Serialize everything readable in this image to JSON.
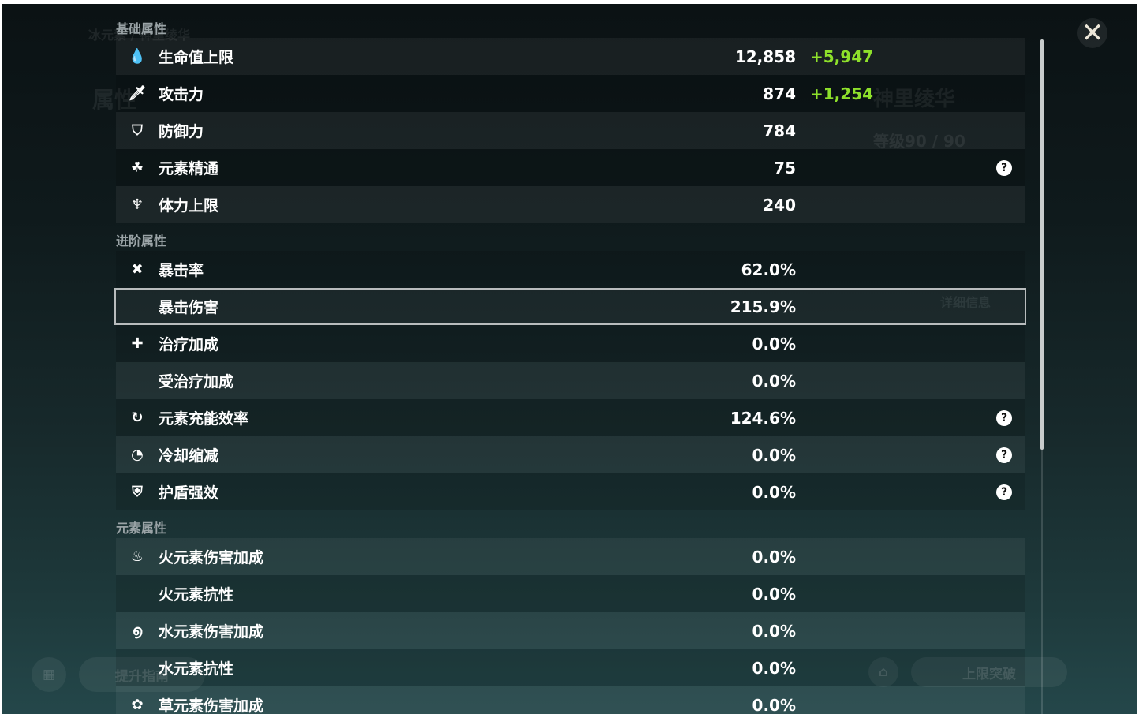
{
  "background": {
    "character_name": "神里绫华",
    "element_line": "冰元素 / 神里绫华",
    "level": "等级90 / 90",
    "tab_attributes": "属性",
    "detail_button": "详细信息",
    "upgrade_button": "提升指南",
    "ascend_button": "上限突破"
  },
  "sections": [
    {
      "title": "基础属性",
      "rows": [
        {
          "icon": "hp-drop-icon",
          "glyph": "💧",
          "label": "生命值上限",
          "value": "12,858",
          "bonus": "+5,947"
        },
        {
          "icon": "sword-icon",
          "glyph": "🗡",
          "label": "攻击力",
          "value": "874",
          "bonus": "+1,254"
        },
        {
          "icon": "shield-icon",
          "glyph": "⛉",
          "label": "防御力",
          "value": "784"
        },
        {
          "icon": "elemental-mastery-icon",
          "glyph": "☘",
          "label": "元素精通",
          "value": "75",
          "help": true
        },
        {
          "icon": "stamina-icon",
          "glyph": "♆",
          "label": "体力上限",
          "value": "240"
        }
      ]
    },
    {
      "title": "进阶属性",
      "rows": [
        {
          "icon": "crit-rate-icon",
          "glyph": "✖",
          "label": "暴击率",
          "value": "62.0%"
        },
        {
          "icon": "crit-dmg-icon",
          "glyph": "",
          "label": "暴击伤害",
          "value": "215.9%",
          "selected": true
        },
        {
          "icon": "healing-icon",
          "glyph": "✚",
          "label": "治疗加成",
          "value": "0.0%"
        },
        {
          "icon": "",
          "glyph": "",
          "label": "受治疗加成",
          "value": "0.0%"
        },
        {
          "icon": "energy-recharge-icon",
          "glyph": "↻",
          "label": "元素充能效率",
          "value": "124.6%",
          "help": true
        },
        {
          "icon": "cooldown-icon",
          "glyph": "◔",
          "label": "冷却缩减",
          "value": "0.0%",
          "help": true
        },
        {
          "icon": "shield-strength-icon",
          "glyph": "⛨",
          "label": "护盾强效",
          "value": "0.0%",
          "help": true
        }
      ]
    },
    {
      "title": "元素属性",
      "rows": [
        {
          "icon": "pyro-icon",
          "glyph": "♨",
          "label": "火元素伤害加成",
          "value": "0.0%"
        },
        {
          "icon": "",
          "glyph": "",
          "label": "火元素抗性",
          "value": "0.0%"
        },
        {
          "icon": "hydro-icon",
          "glyph": "൭",
          "label": "水元素伤害加成",
          "value": "0.0%"
        },
        {
          "icon": "",
          "glyph": "",
          "label": "水元素抗性",
          "value": "0.0%"
        },
        {
          "icon": "dendro-icon",
          "glyph": "✿",
          "label": "草元素伤害加成",
          "value": "0.0%"
        }
      ]
    }
  ],
  "close_glyph": "✕",
  "help_glyph": "?",
  "colors": {
    "bonus": "#8ee02b"
  },
  "scroll_position": 0
}
